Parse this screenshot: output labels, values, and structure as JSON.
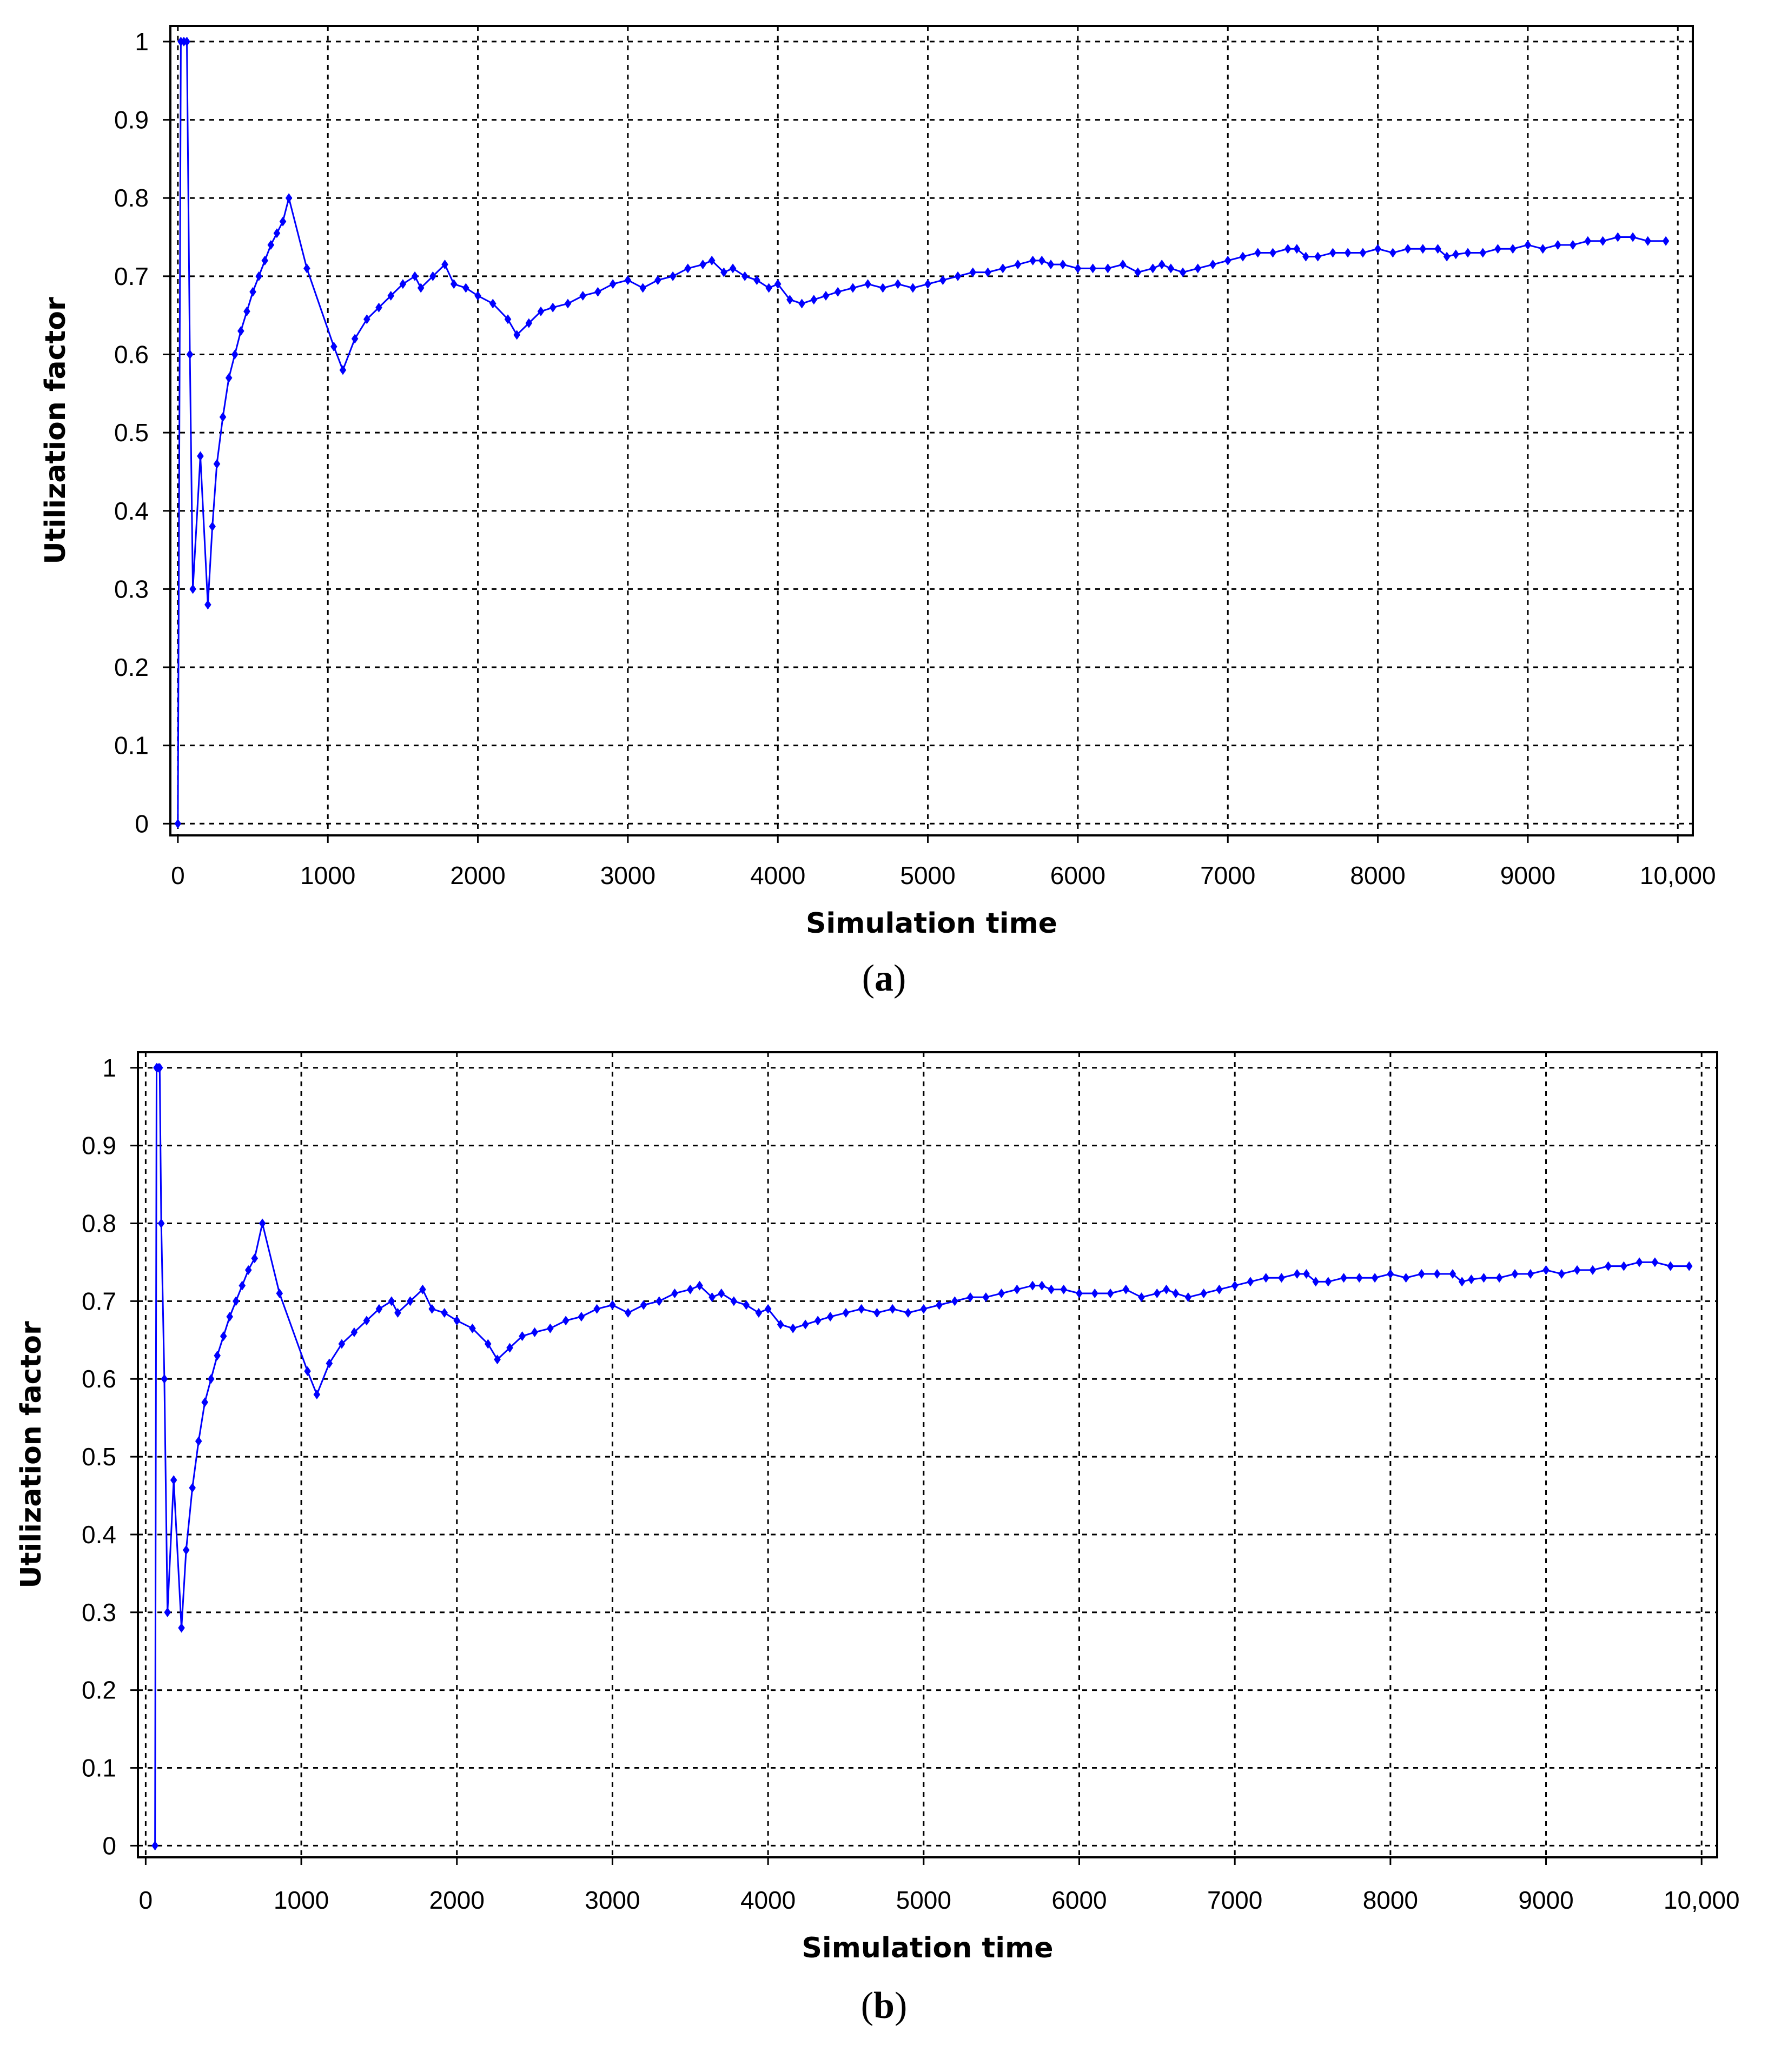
{
  "figure": {
    "panels": [
      {
        "caption_open": "(",
        "caption_letter": "a",
        "caption_close": ")"
      },
      {
        "caption_open": "(",
        "caption_letter": "b",
        "caption_close": ")"
      }
    ]
  },
  "chart_data": [
    {
      "type": "line",
      "panel": "a",
      "xlabel": "Simulation time",
      "ylabel": "Utilization  factor",
      "xlim": [
        -50,
        10100
      ],
      "ylim": [
        -0.015,
        1.02
      ],
      "xticks": [
        0,
        1000,
        2000,
        3000,
        4000,
        5000,
        6000,
        7000,
        8000,
        9000,
        10000
      ],
      "xtick_labels": [
        "0",
        "1000",
        "2000",
        "3000",
        "4000",
        "5000",
        "6000",
        "7000",
        "8000",
        "9000",
        "10,000"
      ],
      "yticks": [
        0,
        0.1,
        0.2,
        0.3,
        0.4,
        0.5,
        0.6,
        0.7,
        0.8,
        0.9,
        1
      ],
      "ytick_labels": [
        "0",
        "0.1",
        "0.2",
        "0.3",
        "0.4",
        "0.5",
        "0.6",
        "0.7",
        "0.8",
        "0.9",
        "1"
      ],
      "grid": true,
      "legend": "none",
      "line_color": "#0000ff",
      "series": [
        {
          "marker": "diamond",
          "x": [
            0,
            20,
            40,
            60,
            80,
            100,
            150,
            200,
            230,
            260,
            300,
            340,
            380,
            420,
            460,
            500,
            540,
            580,
            620,
            660,
            700,
            740,
            860,
            1040,
            1100,
            1180,
            1260,
            1340,
            1420,
            1500,
            1580,
            1620,
            1700,
            1780,
            1840,
            1920,
            2000,
            2100,
            2200,
            2260,
            2340,
            2420,
            2500,
            2600,
            2700,
            2800,
            2900,
            3000,
            3100,
            3200,
            3300,
            3400,
            3500,
            3560,
            3640,
            3700,
            3780,
            3860,
            3940,
            4000,
            4080,
            4160,
            4240,
            4320,
            4400,
            4500,
            4600,
            4700,
            4800,
            4900,
            5000,
            5100,
            5200,
            5300,
            5400,
            5500,
            5600,
            5700,
            5760,
            5820,
            5900,
            6000,
            6100,
            6200,
            6300,
            6400,
            6500,
            6560,
            6620,
            6700,
            6800,
            6900,
            7000,
            7100,
            7200,
            7300,
            7400,
            7460,
            7520,
            7600,
            7700,
            7800,
            7900,
            8000,
            8100,
            8200,
            8300,
            8400,
            8460,
            8520,
            8600,
            8700,
            8800,
            8900,
            9000,
            9100,
            9200,
            9300,
            9400,
            9500,
            9600,
            9700,
            9800,
            9920
          ],
          "y": [
            0,
            1,
            1,
            1,
            0.6,
            0.3,
            0.47,
            0.28,
            0.38,
            0.46,
            0.52,
            0.57,
            0.6,
            0.63,
            0.655,
            0.68,
            0.7,
            0.72,
            0.74,
            0.755,
            0.77,
            0.8,
            0.71,
            0.61,
            0.58,
            0.62,
            0.645,
            0.66,
            0.675,
            0.69,
            0.7,
            0.685,
            0.7,
            0.715,
            0.69,
            0.685,
            0.675,
            0.665,
            0.645,
            0.625,
            0.64,
            0.655,
            0.66,
            0.665,
            0.675,
            0.68,
            0.69,
            0.695,
            0.685,
            0.695,
            0.7,
            0.71,
            0.715,
            0.72,
            0.705,
            0.71,
            0.7,
            0.695,
            0.685,
            0.69,
            0.67,
            0.665,
            0.67,
            0.675,
            0.68,
            0.685,
            0.69,
            0.685,
            0.69,
            0.685,
            0.69,
            0.695,
            0.7,
            0.705,
            0.705,
            0.71,
            0.715,
            0.72,
            0.72,
            0.715,
            0.715,
            0.71,
            0.71,
            0.71,
            0.715,
            0.705,
            0.71,
            0.715,
            0.71,
            0.705,
            0.71,
            0.715,
            0.72,
            0.725,
            0.73,
            0.73,
            0.735,
            0.735,
            0.725,
            0.725,
            0.73,
            0.73,
            0.73,
            0.735,
            0.73,
            0.735,
            0.735,
            0.735,
            0.725,
            0.728,
            0.73,
            0.73,
            0.735,
            0.735,
            0.74,
            0.735,
            0.74,
            0.74,
            0.745,
            0.745,
            0.75,
            0.75,
            0.745,
            0.745
          ]
        }
      ]
    },
    {
      "type": "line",
      "panel": "b",
      "xlabel": "Simulation time",
      "ylabel": "Utilization  factor",
      "xlim": [
        -50,
        10100
      ],
      "ylim": [
        -0.015,
        1.02
      ],
      "xticks": [
        0,
        1000,
        2000,
        3000,
        4000,
        5000,
        6000,
        7000,
        8000,
        9000,
        10000
      ],
      "xtick_labels": [
        "0",
        "1000",
        "2000",
        "3000",
        "4000",
        "5000",
        "6000",
        "7000",
        "8000",
        "9000",
        "10,000"
      ],
      "yticks": [
        0,
        0.1,
        0.2,
        0.3,
        0.4,
        0.5,
        0.6,
        0.7,
        0.8,
        0.9,
        1
      ],
      "ytick_labels": [
        "0",
        "0.1",
        "0.2",
        "0.3",
        "0.4",
        "0.5",
        "0.6",
        "0.7",
        "0.8",
        "0.9",
        "1"
      ],
      "grid": true,
      "legend": "none",
      "line_color": "#0000ff",
      "series": [
        {
          "marker": "diamond",
          "x": [
            60,
            70,
            80,
            90,
            100,
            120,
            140,
            180,
            230,
            260,
            300,
            340,
            380,
            420,
            460,
            500,
            540,
            580,
            620,
            660,
            700,
            750,
            860,
            1040,
            1100,
            1180,
            1260,
            1340,
            1420,
            1500,
            1580,
            1620,
            1700,
            1780,
            1840,
            1920,
            2000,
            2100,
            2200,
            2260,
            2340,
            2420,
            2500,
            2600,
            2700,
            2800,
            2900,
            3000,
            3100,
            3200,
            3300,
            3400,
            3500,
            3560,
            3640,
            3700,
            3780,
            3860,
            3940,
            4000,
            4080,
            4160,
            4240,
            4320,
            4400,
            4500,
            4600,
            4700,
            4800,
            4900,
            5000,
            5100,
            5200,
            5300,
            5400,
            5500,
            5600,
            5700,
            5760,
            5820,
            5900,
            6000,
            6100,
            6200,
            6300,
            6400,
            6500,
            6560,
            6620,
            6700,
            6800,
            6900,
            7000,
            7100,
            7200,
            7300,
            7400,
            7460,
            7520,
            7600,
            7700,
            7800,
            7900,
            8000,
            8100,
            8200,
            8300,
            8400,
            8460,
            8520,
            8600,
            8700,
            8800,
            8900,
            9000,
            9100,
            9200,
            9300,
            9400,
            9500,
            9600,
            9700,
            9800,
            9920
          ],
          "y": [
            0,
            1,
            1,
            1,
            0.8,
            0.6,
            0.3,
            0.47,
            0.28,
            0.38,
            0.46,
            0.52,
            0.57,
            0.6,
            0.63,
            0.655,
            0.68,
            0.7,
            0.72,
            0.74,
            0.755,
            0.8,
            0.71,
            0.61,
            0.58,
            0.62,
            0.645,
            0.66,
            0.675,
            0.69,
            0.7,
            0.685,
            0.7,
            0.715,
            0.69,
            0.685,
            0.675,
            0.665,
            0.645,
            0.625,
            0.64,
            0.655,
            0.66,
            0.665,
            0.675,
            0.68,
            0.69,
            0.695,
            0.685,
            0.695,
            0.7,
            0.71,
            0.715,
            0.72,
            0.705,
            0.71,
            0.7,
            0.695,
            0.685,
            0.69,
            0.67,
            0.665,
            0.67,
            0.675,
            0.68,
            0.685,
            0.69,
            0.685,
            0.69,
            0.685,
            0.69,
            0.695,
            0.7,
            0.705,
            0.705,
            0.71,
            0.715,
            0.72,
            0.72,
            0.715,
            0.715,
            0.71,
            0.71,
            0.71,
            0.715,
            0.705,
            0.71,
            0.715,
            0.71,
            0.705,
            0.71,
            0.715,
            0.72,
            0.725,
            0.73,
            0.73,
            0.735,
            0.735,
            0.725,
            0.725,
            0.73,
            0.73,
            0.73,
            0.735,
            0.73,
            0.735,
            0.735,
            0.735,
            0.725,
            0.728,
            0.73,
            0.73,
            0.735,
            0.735,
            0.74,
            0.735,
            0.74,
            0.74,
            0.745,
            0.745,
            0.75,
            0.75,
            0.745,
            0.745
          ]
        }
      ]
    }
  ]
}
